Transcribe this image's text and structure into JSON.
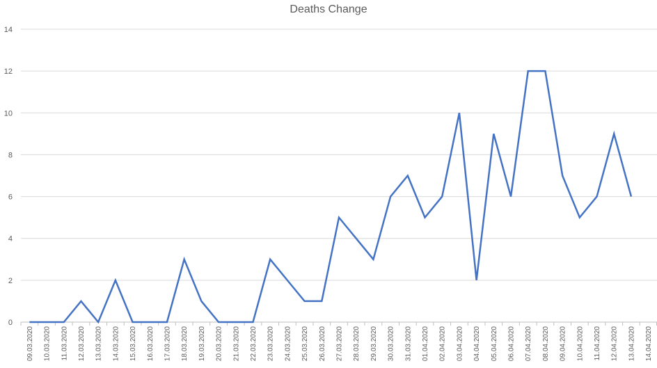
{
  "chart_data": {
    "type": "line",
    "title": "Deaths Change",
    "xlabel": "",
    "ylabel": "",
    "ylim": [
      0,
      14
    ],
    "yticks": [
      0,
      2,
      4,
      6,
      8,
      10,
      12,
      14
    ],
    "grid": true,
    "categories": [
      "09.03.2020",
      "10.03.2020",
      "11.03.2020",
      "12.03.2020",
      "13.03.2020",
      "14.03.2020",
      "15.03.2020",
      "16.03.2020",
      "17.03.2020",
      "18.03.2020",
      "19.03.2020",
      "20.03.2020",
      "21.03.2020",
      "22.03.2020",
      "23.03.2020",
      "24.03.2020",
      "25.03.2020",
      "26.03.2020",
      "27.03.2020",
      "28.03.2020",
      "29.03.2020",
      "30.03.2020",
      "31.03.2020",
      "01.04.2020",
      "02.04.2020",
      "03.04.2020",
      "04.04.2020",
      "05.04.2020",
      "06.04.2020",
      "07.04.2020",
      "08.04.2020",
      "09.04.2020",
      "10.04.2020",
      "11.04.2020",
      "12.04.2020",
      "13.04.2020",
      "14.04.2020"
    ],
    "series": [
      {
        "color": "#4472c4",
        "values": [
          0,
          0,
          0,
          1,
          0,
          2,
          0,
          0,
          0,
          3,
          1,
          0,
          0,
          0,
          3,
          2,
          1,
          1,
          5,
          4,
          3,
          6,
          7,
          5,
          6,
          10,
          2,
          9,
          6,
          12,
          12,
          7,
          5,
          6,
          9,
          6,
          null
        ]
      }
    ]
  }
}
